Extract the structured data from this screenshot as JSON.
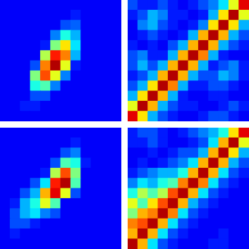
{
  "chart_data": [
    {
      "type": "heatmap",
      "color": "jet",
      "tick_labels": false,
      "xlim": [
        0,
        12
      ],
      "ylim": [
        0,
        12
      ],
      "zlim": [
        0,
        1
      ],
      "cells": [
        [
          0.12,
          0.12,
          0.12,
          0.12,
          0.12,
          0.12,
          0.12,
          0.12,
          0.12,
          0.12,
          0.12,
          0.12
        ],
        [
          0.12,
          0.12,
          0.12,
          0.12,
          0.12,
          0.12,
          0.12,
          0.15,
          0.12,
          0.12,
          0.12,
          0.12
        ],
        [
          0.12,
          0.12,
          0.12,
          0.12,
          0.12,
          0.12,
          0.2,
          0.22,
          0.12,
          0.12,
          0.12,
          0.12
        ],
        [
          0.12,
          0.12,
          0.12,
          0.12,
          0.12,
          0.25,
          0.4,
          0.3,
          0.12,
          0.12,
          0.12,
          0.12
        ],
        [
          0.12,
          0.12,
          0.12,
          0.12,
          0.15,
          0.5,
          0.65,
          0.35,
          0.12,
          0.12,
          0.12,
          0.12
        ],
        [
          0.12,
          0.12,
          0.12,
          0.12,
          0.55,
          0.85,
          0.75,
          0.3,
          0.12,
          0.12,
          0.12,
          0.12
        ],
        [
          0.12,
          0.12,
          0.12,
          0.2,
          0.75,
          0.95,
          0.6,
          0.15,
          0.12,
          0.12,
          0.12,
          0.12
        ],
        [
          0.12,
          0.12,
          0.12,
          0.5,
          0.8,
          0.6,
          0.25,
          0.12,
          0.12,
          0.12,
          0.12,
          0.12
        ],
        [
          0.12,
          0.12,
          0.12,
          0.4,
          0.45,
          0.25,
          0.12,
          0.12,
          0.12,
          0.12,
          0.12,
          0.12
        ],
        [
          0.12,
          0.12,
          0.12,
          0.2,
          0.2,
          0.12,
          0.12,
          0.12,
          0.12,
          0.12,
          0.12,
          0.12
        ],
        [
          0.12,
          0.12,
          0.15,
          0.15,
          0.12,
          0.12,
          0.12,
          0.12,
          0.12,
          0.12,
          0.12,
          0.12
        ],
        [
          0.12,
          0.12,
          0.12,
          0.12,
          0.12,
          0.12,
          0.12,
          0.12,
          0.12,
          0.12,
          0.12,
          0.12
        ]
      ]
    },
    {
      "type": "heatmap",
      "color": "jet",
      "tick_labels": false,
      "xlim": [
        0,
        12
      ],
      "ylim": [
        0,
        12
      ],
      "zlim": [
        0,
        1
      ],
      "cells": [
        [
          0.2,
          0.15,
          0.15,
          0.2,
          0.15,
          0.12,
          0.15,
          0.2,
          0.25,
          0.35,
          0.6,
          0.9
        ],
        [
          0.15,
          0.2,
          0.3,
          0.25,
          0.15,
          0.15,
          0.12,
          0.15,
          0.3,
          0.65,
          0.95,
          0.6
        ],
        [
          0.12,
          0.25,
          0.3,
          0.2,
          0.15,
          0.12,
          0.15,
          0.25,
          0.65,
          0.95,
          0.65,
          0.3
        ],
        [
          0.12,
          0.15,
          0.2,
          0.15,
          0.12,
          0.15,
          0.3,
          0.7,
          0.95,
          0.7,
          0.3,
          0.2
        ],
        [
          0.15,
          0.12,
          0.15,
          0.12,
          0.2,
          0.3,
          0.7,
          0.95,
          0.7,
          0.3,
          0.2,
          0.15
        ],
        [
          0.2,
          0.25,
          0.15,
          0.15,
          0.3,
          0.7,
          0.95,
          0.75,
          0.3,
          0.15,
          0.12,
          0.12
        ],
        [
          0.2,
          0.3,
          0.2,
          0.3,
          0.7,
          0.95,
          0.7,
          0.3,
          0.15,
          0.2,
          0.25,
          0.15
        ],
        [
          0.15,
          0.2,
          0.3,
          0.7,
          0.95,
          0.7,
          0.3,
          0.2,
          0.2,
          0.3,
          0.25,
          0.15
        ],
        [
          0.2,
          0.3,
          0.65,
          0.95,
          0.75,
          0.3,
          0.15,
          0.15,
          0.2,
          0.2,
          0.15,
          0.12
        ],
        [
          0.3,
          0.65,
          0.95,
          0.7,
          0.3,
          0.15,
          0.12,
          0.12,
          0.15,
          0.15,
          0.12,
          0.12
        ],
        [
          0.6,
          0.95,
          0.7,
          0.3,
          0.2,
          0.15,
          0.15,
          0.12,
          0.12,
          0.15,
          0.2,
          0.15
        ],
        [
          0.9,
          0.65,
          0.3,
          0.2,
          0.15,
          0.12,
          0.12,
          0.15,
          0.2,
          0.2,
          0.15,
          0.12
        ]
      ]
    },
    {
      "type": "heatmap",
      "color": "jet",
      "tick_labels": false,
      "xlim": [
        0,
        12
      ],
      "ylim": [
        0,
        12
      ],
      "zlim": [
        0,
        1
      ],
      "cells": [
        [
          0.12,
          0.12,
          0.12,
          0.12,
          0.12,
          0.12,
          0.12,
          0.12,
          0.12,
          0.12,
          0.12,
          0.12
        ],
        [
          0.12,
          0.12,
          0.12,
          0.12,
          0.12,
          0.12,
          0.12,
          0.15,
          0.12,
          0.12,
          0.12,
          0.12
        ],
        [
          0.12,
          0.12,
          0.12,
          0.12,
          0.12,
          0.12,
          0.2,
          0.25,
          0.12,
          0.12,
          0.12,
          0.12
        ],
        [
          0.12,
          0.12,
          0.12,
          0.12,
          0.12,
          0.2,
          0.45,
          0.4,
          0.15,
          0.12,
          0.12,
          0.12
        ],
        [
          0.12,
          0.12,
          0.12,
          0.12,
          0.15,
          0.55,
          0.8,
          0.5,
          0.12,
          0.12,
          0.12,
          0.12
        ],
        [
          0.12,
          0.12,
          0.12,
          0.2,
          0.35,
          0.85,
          0.95,
          0.45,
          0.12,
          0.12,
          0.12,
          0.12
        ],
        [
          0.12,
          0.12,
          0.2,
          0.3,
          0.7,
          0.9,
          0.6,
          0.2,
          0.12,
          0.12,
          0.12,
          0.12
        ],
        [
          0.12,
          0.15,
          0.3,
          0.4,
          0.6,
          0.45,
          0.12,
          0.12,
          0.12,
          0.12,
          0.12,
          0.12
        ],
        [
          0.12,
          0.2,
          0.3,
          0.35,
          0.25,
          0.2,
          0.12,
          0.12,
          0.12,
          0.12,
          0.12,
          0.12
        ],
        [
          0.12,
          0.2,
          0.2,
          0.15,
          0.12,
          0.12,
          0.12,
          0.12,
          0.12,
          0.12,
          0.12,
          0.12
        ],
        [
          0.12,
          0.15,
          0.12,
          0.12,
          0.12,
          0.12,
          0.12,
          0.12,
          0.12,
          0.12,
          0.12,
          0.12
        ],
        [
          0.12,
          0.12,
          0.12,
          0.12,
          0.12,
          0.12,
          0.12,
          0.12,
          0.12,
          0.12,
          0.12,
          0.12
        ]
      ]
    },
    {
      "type": "heatmap",
      "color": "jet",
      "tick_labels": false,
      "xlim": [
        0,
        12
      ],
      "ylim": [
        0,
        12
      ],
      "zlim": [
        0,
        1
      ],
      "cells": [
        [
          0.15,
          0.2,
          0.2,
          0.15,
          0.12,
          0.15,
          0.2,
          0.25,
          0.3,
          0.4,
          0.65,
          0.9
        ],
        [
          0.15,
          0.15,
          0.2,
          0.15,
          0.12,
          0.12,
          0.15,
          0.2,
          0.35,
          0.7,
          0.95,
          0.6
        ],
        [
          0.12,
          0.12,
          0.15,
          0.12,
          0.15,
          0.2,
          0.2,
          0.3,
          0.7,
          0.95,
          0.65,
          0.3
        ],
        [
          0.12,
          0.15,
          0.12,
          0.15,
          0.2,
          0.25,
          0.35,
          0.7,
          0.95,
          0.7,
          0.3,
          0.2
        ],
        [
          0.15,
          0.2,
          0.25,
          0.3,
          0.3,
          0.4,
          0.7,
          0.95,
          0.7,
          0.35,
          0.2,
          0.15
        ],
        [
          0.25,
          0.35,
          0.3,
          0.4,
          0.45,
          0.75,
          0.95,
          0.75,
          0.35,
          0.2,
          0.15,
          0.12
        ],
        [
          0.4,
          0.55,
          0.45,
          0.55,
          0.8,
          0.95,
          0.7,
          0.35,
          0.2,
          0.15,
          0.12,
          0.12
        ],
        [
          0.6,
          0.45,
          0.65,
          0.8,
          0.95,
          0.7,
          0.3,
          0.2,
          0.15,
          0.12,
          0.12,
          0.12
        ],
        [
          0.5,
          0.7,
          0.75,
          0.95,
          0.75,
          0.35,
          0.2,
          0.15,
          0.12,
          0.12,
          0.12,
          0.12
        ],
        [
          0.75,
          0.8,
          0.95,
          0.7,
          0.35,
          0.2,
          0.15,
          0.12,
          0.12,
          0.12,
          0.12,
          0.12
        ],
        [
          0.7,
          0.95,
          0.7,
          0.35,
          0.2,
          0.15,
          0.12,
          0.12,
          0.12,
          0.15,
          0.12,
          0.12
        ],
        [
          0.95,
          0.7,
          0.35,
          0.2,
          0.15,
          0.12,
          0.12,
          0.12,
          0.15,
          0.15,
          0.12,
          0.12
        ]
      ]
    }
  ]
}
